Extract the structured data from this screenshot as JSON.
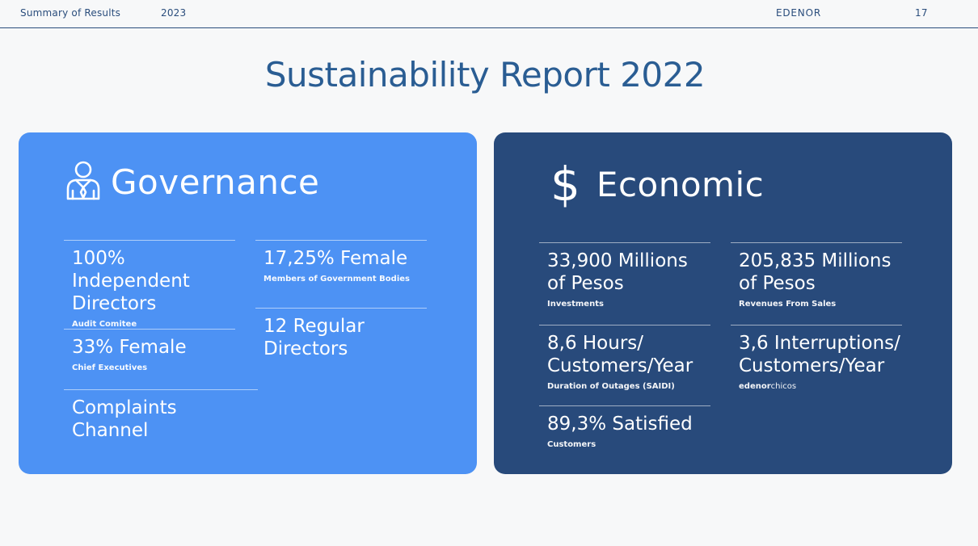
{
  "header": {
    "section": "Summary of Results",
    "year": "2023",
    "brand": "EDENOR",
    "page_number": "17"
  },
  "title": "Sustainability Report 2022",
  "governance": {
    "heading": "Governance",
    "icon": "person-tie-icon",
    "stats": [
      {
        "big": "100% Independent\nDirectors",
        "small": "Audit Comitee"
      },
      {
        "big": "17,25% Female",
        "small": "Members of Government Bodies"
      },
      {
        "big": "33% Female",
        "small": "Chief Executives"
      },
      {
        "big": "12 Regular\nDirectors",
        "small": ""
      },
      {
        "big": "Complaints Channel",
        "small": ""
      }
    ]
  },
  "economic": {
    "heading": "Economic",
    "icon_glyph": "$",
    "stats": [
      {
        "big": "33,900 Millions\nof Pesos",
        "small": "Investments"
      },
      {
        "big": "205,835 Millions\nof Pesos",
        "small": "Revenues From Sales"
      },
      {
        "big": "8,6 Hours/\nCustomers/Year",
        "small": "Duration of Outages (SAIDI)"
      },
      {
        "big": "3,6 Interruptions/\nCustomers/Year",
        "small_bold": "edenor",
        "small_light": "chicos"
      },
      {
        "big": "89,3% Satisfied",
        "small": "Customers"
      }
    ]
  },
  "colors": {
    "governance_bg": "#4d92f4",
    "economic_bg": "#284a7b",
    "title": "#2a5d93",
    "header_text": "#2a4d7c"
  }
}
